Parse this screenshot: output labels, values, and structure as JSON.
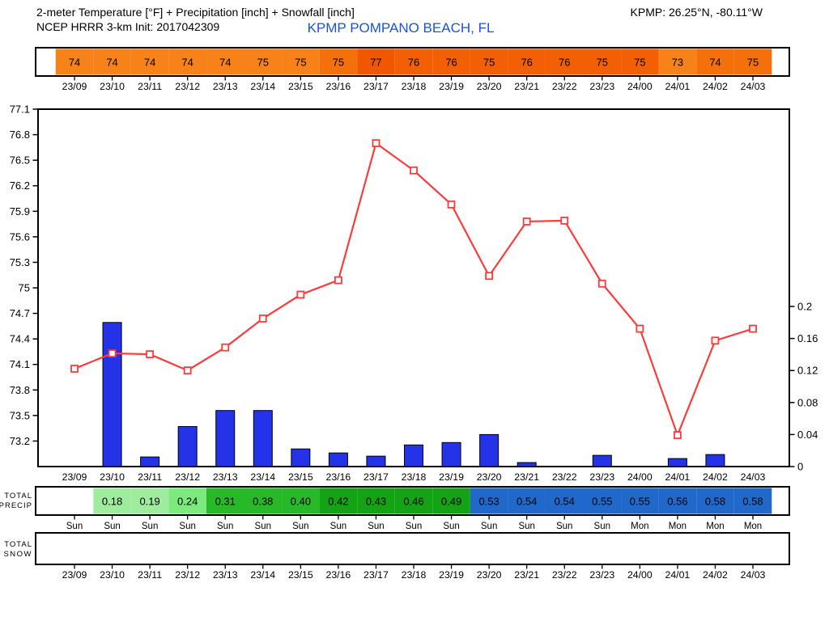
{
  "header": {
    "title": "2-meter Temperature [°F] + Precipitation [inch] + Snowfall [inch]",
    "model_init": "NCEP HRRR 3-km Init: 2017042309",
    "station_name": "KPMP POMPANO BEACH, FL",
    "station_coords": "KPMP: 26.25°N, -80.11°W"
  },
  "colors": {
    "station_blue": "#1a55d6",
    "line_red": "#fa3c3c",
    "bar_blue": "#2433e8",
    "frame_black": "#000000"
  },
  "hours": [
    "23/09",
    "23/10",
    "23/11",
    "23/12",
    "23/13",
    "23/14",
    "23/15",
    "23/16",
    "23/17",
    "23/18",
    "23/19",
    "23/20",
    "23/21",
    "23/22",
    "23/23",
    "24/00",
    "24/01",
    "24/02",
    "24/03"
  ],
  "days": [
    "Sun",
    "Sun",
    "Sun",
    "Sun",
    "Sun",
    "Sun",
    "Sun",
    "Sun",
    "Sun",
    "Sun",
    "Sun",
    "Sun",
    "Sun",
    "Sun",
    "Sun",
    "Mon",
    "Mon",
    "Mon",
    "Mon"
  ],
  "temp_strip": {
    "values": [
      "74",
      "74",
      "74",
      "74",
      "74",
      "75",
      "75",
      "75",
      "77",
      "76",
      "76",
      "75",
      "76",
      "76",
      "75",
      "75",
      "73",
      "74",
      "75"
    ],
    "cell_colors": [
      "#f8821a",
      "#f8821a",
      "#f8821a",
      "#f8821a",
      "#f8821a",
      "#f8821a",
      "#f8821a",
      "#f4700a",
      "#f15700",
      "#f25f04",
      "#f25f04",
      "#f25f04",
      "#f25f04",
      "#f25f04",
      "#f25f04",
      "#f25f04",
      "#f8821a",
      "#f4700a",
      "#f4700a"
    ]
  },
  "chart_data": {
    "type": "line+bar",
    "title": "2-meter Temperature [°F] + Precipitation [inch] + Snowfall [inch]",
    "x_categories": [
      "23/09",
      "23/10",
      "23/11",
      "23/12",
      "23/13",
      "23/14",
      "23/15",
      "23/16",
      "23/17",
      "23/18",
      "23/19",
      "23/20",
      "23/21",
      "23/22",
      "23/23",
      "24/00",
      "24/01",
      "24/02",
      "24/03"
    ],
    "series": [
      {
        "name": "2-meter Temperature [°F]",
        "type": "line",
        "color": "#fa3c3c",
        "marker": "open-square",
        "values": [
          74.05,
          74.23,
          74.22,
          74.03,
          74.3,
          74.64,
          74.92,
          75.09,
          76.7,
          76.38,
          75.98,
          75.14,
          75.78,
          75.79,
          75.05,
          74.52,
          73.27,
          74.38,
          74.52
        ]
      },
      {
        "name": "Precipitation [inch]",
        "type": "bar",
        "color": "#2433e8",
        "values": [
          0,
          0.18,
          0.012,
          0.05,
          0.07,
          0.07,
          0.022,
          0.017,
          0.013,
          0.027,
          0.03,
          0.04,
          0.005,
          0,
          0.014,
          0,
          0.01,
          0.015,
          0
        ]
      }
    ],
    "left_axis": {
      "label": "Temperature [°F]",
      "min": 72.9,
      "max": 77.1,
      "tick_step": 0.3,
      "tick_labels": [
        "77.1",
        "76.8",
        "76.5",
        "76.2",
        "75.9",
        "75.6",
        "75.3",
        "75",
        "74.7",
        "74.4",
        "74.1",
        "73.8",
        "73.5",
        "73.2"
      ]
    },
    "right_axis": {
      "label": "Precipitation [inch]",
      "min": 0,
      "max": 0.447,
      "tick_values": [
        0.2,
        0.16,
        0.12,
        0.08,
        0.04,
        0
      ],
      "tick_labels": [
        "0.2",
        "0.16",
        "0.12",
        "0.08",
        "0.04",
        "0"
      ]
    },
    "grid": false,
    "legend": "none"
  },
  "precip_strip": {
    "label_lines": [
      "TOTAL",
      "PRECIP"
    ],
    "start_hour_index": 1,
    "values": [
      "0.18",
      "0.19",
      "0.24",
      "0.31",
      "0.38",
      "0.40",
      "0.42",
      "0.43",
      "0.46",
      "0.49",
      "0.53",
      "0.54",
      "0.54",
      "0.55",
      "0.55",
      "0.56",
      "0.58",
      "0.58"
    ],
    "cell_colors": [
      "#9fec9f",
      "#9fec9f",
      "#7dea7d",
      "#27b927",
      "#27b927",
      "#27b927",
      "#14a314",
      "#14a314",
      "#14a314",
      "#14a314",
      "#2068ca",
      "#2068ca",
      "#2068ca",
      "#2068ca",
      "#2068ca",
      "#2068ca",
      "#2068ca",
      "#2068ca"
    ]
  },
  "snow_strip": {
    "label_lines": [
      "TOTAL",
      "SNOW"
    ],
    "values": []
  }
}
